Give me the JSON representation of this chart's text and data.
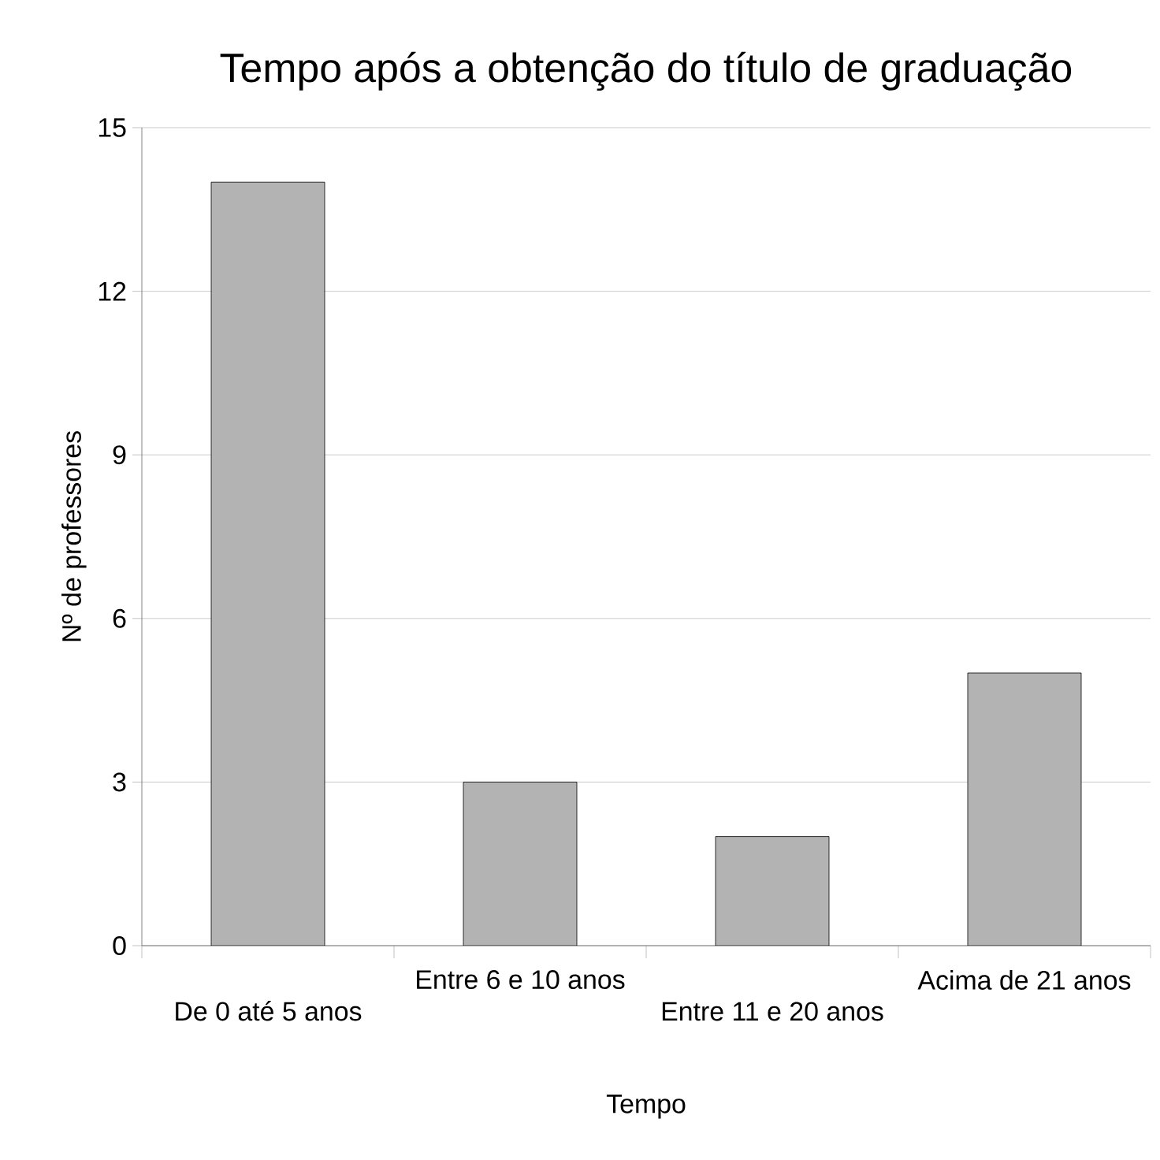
{
  "chart_data": {
    "type": "bar",
    "title": "Tempo após a obtenção do título de graduação",
    "xlabel": "Tempo",
    "ylabel": "Nº de professores",
    "categories": [
      "De 0 até 5 anos",
      "Entre 6 e 10 anos",
      "Entre 11 e 20 anos",
      "Acima de 21 anos"
    ],
    "values": [
      14,
      3,
      2,
      5
    ],
    "color": "#b3b3b3",
    "ylim": [
      0,
      15
    ],
    "yticks": [
      0,
      3,
      6,
      9,
      12,
      15
    ],
    "grid": "y"
  }
}
